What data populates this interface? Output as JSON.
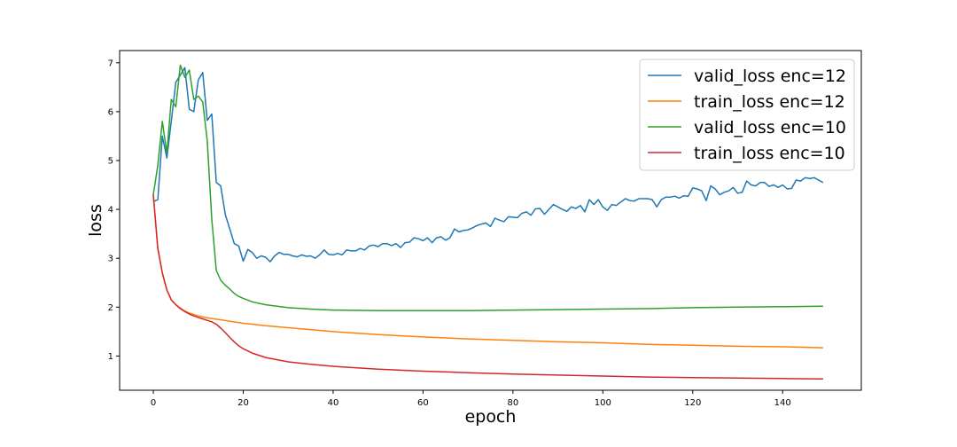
{
  "chart_data": {
    "type": "line",
    "xlabel": "epoch",
    "ylabel": "loss",
    "xlim": [
      -7.5,
      157.5
    ],
    "ylim": [
      0.3,
      7.25
    ],
    "xticks": [
      0,
      20,
      40,
      60,
      80,
      100,
      120,
      140
    ],
    "yticks": [
      1,
      2,
      3,
      4,
      5,
      6,
      7
    ],
    "legend_position": "upper right",
    "grid": false,
    "series": [
      {
        "name": "valid_loss enc=12",
        "color": "#1f77b4",
        "points": [
          [
            0,
            4.16
          ],
          [
            1,
            4.2
          ],
          [
            2,
            5.5
          ],
          [
            3,
            5.05
          ],
          [
            4,
            5.8
          ],
          [
            5,
            6.6
          ],
          [
            6,
            6.75
          ],
          [
            7,
            6.9
          ],
          [
            8,
            6.05
          ],
          [
            9,
            6.0
          ],
          [
            10,
            6.65
          ],
          [
            11,
            6.8
          ],
          [
            12,
            5.82
          ],
          [
            13,
            5.95
          ],
          [
            14,
            4.55
          ],
          [
            15,
            4.48
          ],
          [
            16,
            3.9
          ],
          [
            17,
            3.6
          ],
          [
            18,
            3.3
          ],
          [
            19,
            3.25
          ],
          [
            20,
            2.94
          ],
          [
            21,
            3.18
          ],
          [
            22,
            3.12
          ],
          [
            23,
            3.0
          ],
          [
            24,
            3.05
          ],
          [
            25,
            3.02
          ],
          [
            26,
            2.93
          ],
          [
            27,
            3.05
          ],
          [
            28,
            3.12
          ],
          [
            29,
            3.08
          ],
          [
            30,
            3.08
          ],
          [
            31,
            3.05
          ],
          [
            32,
            3.03
          ],
          [
            33,
            3.07
          ],
          [
            34,
            3.04
          ],
          [
            35,
            3.05
          ],
          [
            36,
            3.0
          ],
          [
            37,
            3.07
          ],
          [
            38,
            3.17
          ],
          [
            39,
            3.08
          ],
          [
            40,
            3.07
          ],
          [
            41,
            3.1
          ],
          [
            42,
            3.07
          ],
          [
            43,
            3.17
          ],
          [
            44,
            3.15
          ],
          [
            45,
            3.15
          ],
          [
            46,
            3.2
          ],
          [
            47,
            3.17
          ],
          [
            48,
            3.25
          ],
          [
            49,
            3.27
          ],
          [
            50,
            3.24
          ],
          [
            51,
            3.3
          ],
          [
            52,
            3.3
          ],
          [
            53,
            3.26
          ],
          [
            54,
            3.3
          ],
          [
            55,
            3.22
          ],
          [
            56,
            3.32
          ],
          [
            57,
            3.33
          ],
          [
            58,
            3.42
          ],
          [
            59,
            3.4
          ],
          [
            60,
            3.36
          ],
          [
            61,
            3.42
          ],
          [
            62,
            3.32
          ],
          [
            63,
            3.42
          ],
          [
            64,
            3.44
          ],
          [
            65,
            3.37
          ],
          [
            66,
            3.42
          ],
          [
            67,
            3.6
          ],
          [
            68,
            3.54
          ],
          [
            69,
            3.57
          ],
          [
            70,
            3.58
          ],
          [
            71,
            3.62
          ],
          [
            72,
            3.67
          ],
          [
            73,
            3.7
          ],
          [
            74,
            3.72
          ],
          [
            75,
            3.65
          ],
          [
            76,
            3.82
          ],
          [
            77,
            3.78
          ],
          [
            78,
            3.75
          ],
          [
            79,
            3.85
          ],
          [
            80,
            3.84
          ],
          [
            81,
            3.83
          ],
          [
            82,
            3.92
          ],
          [
            83,
            3.95
          ],
          [
            84,
            3.88
          ],
          [
            85,
            4.01
          ],
          [
            86,
            4.02
          ],
          [
            87,
            3.9
          ],
          [
            88,
            4.0
          ],
          [
            89,
            4.1
          ],
          [
            90,
            4.05
          ],
          [
            91,
            4.0
          ],
          [
            92,
            3.96
          ],
          [
            93,
            4.05
          ],
          [
            94,
            4.02
          ],
          [
            95,
            4.08
          ],
          [
            96,
            3.95
          ],
          [
            97,
            4.2
          ],
          [
            98,
            4.1
          ],
          [
            99,
            4.2
          ],
          [
            100,
            4.05
          ],
          [
            101,
            3.98
          ],
          [
            102,
            4.1
          ],
          [
            103,
            4.08
          ],
          [
            104,
            4.15
          ],
          [
            105,
            4.22
          ],
          [
            106,
            4.18
          ],
          [
            107,
            4.17
          ],
          [
            108,
            4.22
          ],
          [
            109,
            4.22
          ],
          [
            110,
            4.22
          ],
          [
            111,
            4.2
          ],
          [
            112,
            4.05
          ],
          [
            113,
            4.2
          ],
          [
            114,
            4.25
          ],
          [
            115,
            4.25
          ],
          [
            116,
            4.27
          ],
          [
            117,
            4.23
          ],
          [
            118,
            4.28
          ],
          [
            119,
            4.27
          ],
          [
            120,
            4.44
          ],
          [
            121,
            4.42
          ],
          [
            122,
            4.38
          ],
          [
            123,
            4.18
          ],
          [
            124,
            4.48
          ],
          [
            125,
            4.42
          ],
          [
            126,
            4.3
          ],
          [
            127,
            4.35
          ],
          [
            128,
            4.38
          ],
          [
            129,
            4.45
          ],
          [
            130,
            4.33
          ],
          [
            131,
            4.35
          ],
          [
            132,
            4.58
          ],
          [
            133,
            4.5
          ],
          [
            134,
            4.48
          ],
          [
            135,
            4.55
          ],
          [
            136,
            4.55
          ],
          [
            137,
            4.47
          ],
          [
            138,
            4.5
          ],
          [
            139,
            4.45
          ],
          [
            140,
            4.5
          ],
          [
            141,
            4.42
          ],
          [
            142,
            4.43
          ],
          [
            143,
            4.6
          ],
          [
            144,
            4.58
          ],
          [
            145,
            4.65
          ],
          [
            146,
            4.63
          ],
          [
            147,
            4.65
          ],
          [
            148,
            4.6
          ],
          [
            149,
            4.55
          ]
        ]
      },
      {
        "name": "train_loss enc=12",
        "color": "#ff7f0e",
        "points": [
          [
            0,
            4.3
          ],
          [
            1,
            3.2
          ],
          [
            2,
            2.7
          ],
          [
            3,
            2.35
          ],
          [
            4,
            2.15
          ],
          [
            5,
            2.05
          ],
          [
            6,
            1.98
          ],
          [
            7,
            1.92
          ],
          [
            8,
            1.88
          ],
          [
            9,
            1.85
          ],
          [
            10,
            1.82
          ],
          [
            12,
            1.78
          ],
          [
            15,
            1.74
          ],
          [
            20,
            1.67
          ],
          [
            25,
            1.62
          ],
          [
            30,
            1.58
          ],
          [
            40,
            1.5
          ],
          [
            50,
            1.44
          ],
          [
            60,
            1.39
          ],
          [
            70,
            1.35
          ],
          [
            80,
            1.32
          ],
          [
            90,
            1.29
          ],
          [
            100,
            1.27
          ],
          [
            110,
            1.24
          ],
          [
            120,
            1.22
          ],
          [
            130,
            1.2
          ],
          [
            140,
            1.19
          ],
          [
            149,
            1.17
          ]
        ]
      },
      {
        "name": "valid_loss enc=10",
        "color": "#2ca02c",
        "points": [
          [
            0,
            4.3
          ],
          [
            1,
            4.9
          ],
          [
            2,
            5.8
          ],
          [
            3,
            5.15
          ],
          [
            4,
            6.25
          ],
          [
            5,
            6.1
          ],
          [
            6,
            6.95
          ],
          [
            7,
            6.7
          ],
          [
            8,
            6.85
          ],
          [
            9,
            6.25
          ],
          [
            10,
            6.32
          ],
          [
            11,
            6.2
          ],
          [
            12,
            5.4
          ],
          [
            13,
            3.8
          ],
          [
            14,
            2.75
          ],
          [
            15,
            2.55
          ],
          [
            16,
            2.45
          ],
          [
            17,
            2.37
          ],
          [
            18,
            2.28
          ],
          [
            19,
            2.22
          ],
          [
            20,
            2.18
          ],
          [
            22,
            2.11
          ],
          [
            25,
            2.05
          ],
          [
            30,
            1.99
          ],
          [
            35,
            1.96
          ],
          [
            40,
            1.94
          ],
          [
            50,
            1.93
          ],
          [
            60,
            1.93
          ],
          [
            70,
            1.93
          ],
          [
            80,
            1.94
          ],
          [
            90,
            1.95
          ],
          [
            100,
            1.96
          ],
          [
            110,
            1.97
          ],
          [
            120,
            1.99
          ],
          [
            130,
            2.0
          ],
          [
            140,
            2.01
          ],
          [
            149,
            2.02
          ]
        ]
      },
      {
        "name": "train_loss enc=10",
        "color": "#d62728",
        "points": [
          [
            0,
            4.3
          ],
          [
            1,
            3.2
          ],
          [
            2,
            2.7
          ],
          [
            3,
            2.35
          ],
          [
            4,
            2.15
          ],
          [
            5,
            2.05
          ],
          [
            6,
            1.97
          ],
          [
            7,
            1.91
          ],
          [
            8,
            1.86
          ],
          [
            9,
            1.82
          ],
          [
            10,
            1.79
          ],
          [
            11,
            1.76
          ],
          [
            12,
            1.73
          ],
          [
            13,
            1.7
          ],
          [
            14,
            1.65
          ],
          [
            15,
            1.57
          ],
          [
            16,
            1.48
          ],
          [
            17,
            1.38
          ],
          [
            18,
            1.29
          ],
          [
            19,
            1.21
          ],
          [
            20,
            1.15
          ],
          [
            22,
            1.06
          ],
          [
            25,
            0.97
          ],
          [
            30,
            0.88
          ],
          [
            35,
            0.83
          ],
          [
            40,
            0.79
          ],
          [
            50,
            0.73
          ],
          [
            60,
            0.69
          ],
          [
            70,
            0.66
          ],
          [
            80,
            0.63
          ],
          [
            90,
            0.61
          ],
          [
            100,
            0.59
          ],
          [
            110,
            0.57
          ],
          [
            120,
            0.56
          ],
          [
            130,
            0.55
          ],
          [
            140,
            0.54
          ],
          [
            149,
            0.53
          ]
        ]
      }
    ]
  }
}
